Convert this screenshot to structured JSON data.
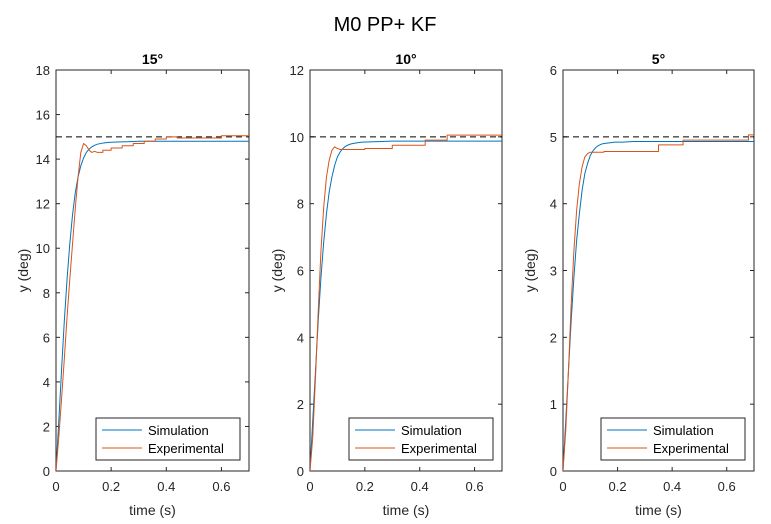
{
  "figure_title": "M0 PP+ KF",
  "colors": {
    "simulation": "#0072BD",
    "experimental": "#D95319",
    "reference": "#000000"
  },
  "chart_data": [
    {
      "type": "line",
      "title": "15°",
      "xlabel": "time (s)",
      "ylabel": "y (deg)",
      "xlim": [
        0,
        0.7
      ],
      "ylim": [
        0,
        18
      ],
      "xticks": [
        0,
        0.2,
        0.4,
        0.6
      ],
      "xtick_labels": [
        "0",
        "0.2",
        "0.4",
        "0.6"
      ],
      "yticks": [
        0,
        2,
        4,
        6,
        8,
        10,
        12,
        14,
        16,
        18
      ],
      "ytick_labels": [
        "0",
        "2",
        "4",
        "6",
        "8",
        "10",
        "12",
        "14",
        "16",
        "18"
      ],
      "grid": false,
      "legend_position": "bottom-right",
      "reference": {
        "name": "",
        "value": 15,
        "style": "dashed"
      },
      "series": [
        {
          "name": "Simulation",
          "color": "#0072BD",
          "x": [
            0,
            0.01,
            0.02,
            0.03,
            0.04,
            0.05,
            0.06,
            0.07,
            0.08,
            0.09,
            0.1,
            0.11,
            0.12,
            0.13,
            0.14,
            0.15,
            0.17,
            0.19,
            0.22,
            0.26,
            0.3,
            0.4,
            0.5,
            0.6,
            0.7
          ],
          "y": [
            0,
            2.2,
            4.5,
            6.7,
            8.6,
            10.2,
            11.5,
            12.5,
            13.2,
            13.7,
            14.05,
            14.3,
            14.45,
            14.55,
            14.62,
            14.67,
            14.72,
            14.75,
            14.77,
            14.78,
            14.8,
            14.8,
            14.8,
            14.8,
            14.8
          ]
        },
        {
          "name": "Experimental",
          "color": "#D95319",
          "x": [
            0,
            0.01,
            0.02,
            0.03,
            0.04,
            0.05,
            0.06,
            0.07,
            0.08,
            0.09,
            0.1,
            0.11,
            0.12,
            0.13,
            0.14,
            0.15,
            0.17,
            0.17,
            0.2,
            0.2,
            0.24,
            0.24,
            0.28,
            0.28,
            0.32,
            0.32,
            0.36,
            0.36,
            0.4,
            0.4,
            0.44,
            0.44,
            0.6,
            0.6,
            0.7
          ],
          "y": [
            0,
            1.5,
            3.2,
            5.0,
            6.9,
            8.6,
            10.2,
            11.8,
            13.2,
            14.3,
            14.7,
            14.6,
            14.4,
            14.3,
            14.35,
            14.3,
            14.3,
            14.4,
            14.4,
            14.5,
            14.5,
            14.6,
            14.6,
            14.7,
            14.7,
            14.8,
            14.8,
            14.9,
            14.9,
            15.0,
            15.0,
            14.95,
            14.95,
            15.05,
            15.05
          ]
        }
      ]
    },
    {
      "type": "line",
      "title": "10°",
      "xlabel": "time (s)",
      "ylabel": "y (deg)",
      "xlim": [
        0,
        0.7
      ],
      "ylim": [
        0,
        12
      ],
      "xticks": [
        0,
        0.2,
        0.4,
        0.6
      ],
      "xtick_labels": [
        "0",
        "0.2",
        "0.4",
        "0.6"
      ],
      "yticks": [
        0,
        2,
        4,
        6,
        8,
        10,
        12
      ],
      "ytick_labels": [
        "0",
        "2",
        "4",
        "6",
        "8",
        "10",
        "12"
      ],
      "grid": false,
      "legend_position": "bottom-right",
      "reference": {
        "name": "",
        "value": 10,
        "style": "dashed"
      },
      "series": [
        {
          "name": "Simulation",
          "color": "#0072BD",
          "x": [
            0,
            0.01,
            0.02,
            0.03,
            0.04,
            0.05,
            0.06,
            0.07,
            0.08,
            0.09,
            0.1,
            0.11,
            0.12,
            0.13,
            0.14,
            0.15,
            0.17,
            0.19,
            0.22,
            0.26,
            0.3,
            0.4,
            0.5,
            0.6,
            0.7
          ],
          "y": [
            0,
            1.5,
            3.0,
            4.5,
            5.8,
            6.85,
            7.7,
            8.35,
            8.8,
            9.15,
            9.4,
            9.55,
            9.65,
            9.72,
            9.76,
            9.79,
            9.82,
            9.84,
            9.85,
            9.86,
            9.87,
            9.87,
            9.87,
            9.87,
            9.87
          ]
        },
        {
          "name": "Experimental",
          "color": "#D95319",
          "x": [
            0,
            0.01,
            0.02,
            0.03,
            0.04,
            0.05,
            0.06,
            0.07,
            0.08,
            0.09,
            0.1,
            0.11,
            0.11,
            0.2,
            0.2,
            0.3,
            0.3,
            0.42,
            0.42,
            0.5,
            0.5,
            0.7
          ],
          "y": [
            0,
            1.0,
            2.8,
            4.8,
            6.6,
            7.9,
            8.8,
            9.3,
            9.6,
            9.7,
            9.65,
            9.62,
            9.62,
            9.62,
            9.65,
            9.65,
            9.75,
            9.75,
            9.9,
            9.9,
            10.05,
            10.05
          ]
        }
      ]
    },
    {
      "type": "line",
      "title": "5°",
      "xlabel": "time (s)",
      "ylabel": "y (deg)",
      "xlim": [
        0,
        0.7
      ],
      "ylim": [
        0,
        6
      ],
      "xticks": [
        0,
        0.2,
        0.4,
        0.6
      ],
      "xtick_labels": [
        "0",
        "0.2",
        "0.4",
        "0.6"
      ],
      "yticks": [
        0,
        1,
        2,
        3,
        4,
        5,
        6
      ],
      "ytick_labels": [
        "0",
        "1",
        "2",
        "3",
        "4",
        "5",
        "6"
      ],
      "grid": false,
      "legend_position": "bottom-right",
      "reference": {
        "name": "",
        "value": 5,
        "style": "dashed"
      },
      "series": [
        {
          "name": "Simulation",
          "color": "#0072BD",
          "x": [
            0,
            0.01,
            0.02,
            0.03,
            0.04,
            0.05,
            0.06,
            0.07,
            0.08,
            0.09,
            0.1,
            0.11,
            0.12,
            0.13,
            0.14,
            0.15,
            0.17,
            0.19,
            0.22,
            0.26,
            0.3,
            0.4,
            0.5,
            0.6,
            0.7
          ],
          "y": [
            0,
            0.75,
            1.5,
            2.25,
            2.9,
            3.45,
            3.85,
            4.2,
            4.45,
            4.6,
            4.72,
            4.79,
            4.84,
            4.87,
            4.89,
            4.9,
            4.91,
            4.92,
            4.92,
            4.93,
            4.93,
            4.93,
            4.93,
            4.93,
            4.93
          ]
        },
        {
          "name": "Experimental",
          "color": "#D95319",
          "x": [
            0,
            0.01,
            0.02,
            0.03,
            0.04,
            0.05,
            0.06,
            0.07,
            0.08,
            0.09,
            0.1,
            0.15,
            0.15,
            0.35,
            0.35,
            0.44,
            0.44,
            0.68,
            0.68,
            0.7
          ],
          "y": [
            0,
            0.6,
            1.5,
            2.5,
            3.3,
            3.9,
            4.3,
            4.55,
            4.7,
            4.75,
            4.77,
            4.77,
            4.78,
            4.78,
            4.88,
            4.88,
            4.95,
            4.95,
            5.03,
            5.03
          ]
        }
      ]
    }
  ]
}
